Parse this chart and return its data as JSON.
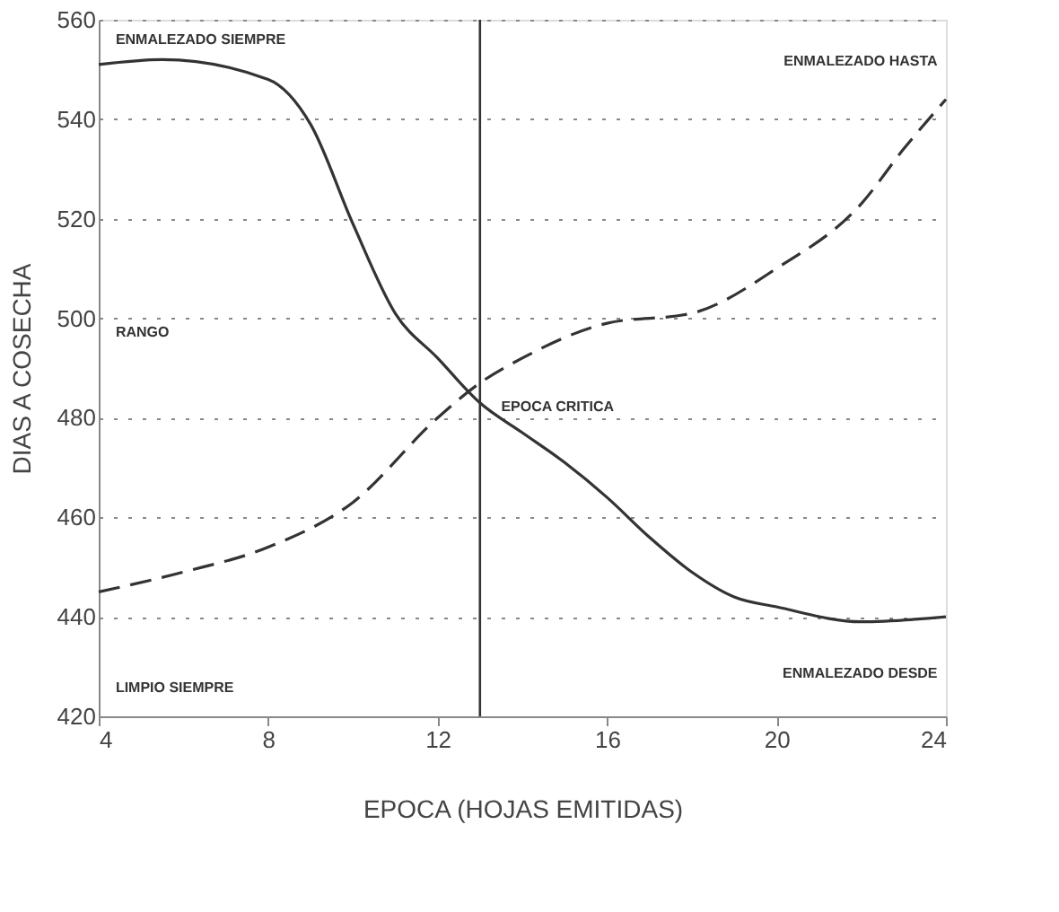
{
  "chart_data": {
    "type": "line",
    "xlabel": "EPOCA (HOJAS EMITIDAS)",
    "ylabel": "DIAS A COSECHA",
    "xlim": [
      4,
      24
    ],
    "xticks": [
      4,
      8,
      12,
      16,
      20,
      24
    ],
    "ylim": [
      420,
      560
    ],
    "yticks": [
      420,
      440,
      460,
      480,
      500,
      520,
      540,
      560
    ],
    "grid": "y",
    "series": [
      {
        "color": "#333333",
        "line_style": "solid",
        "x": [
          4,
          5.5,
          8,
          9,
          10,
          11,
          12,
          13,
          14,
          15,
          16,
          17,
          18,
          19,
          20,
          22,
          24
        ],
        "values": [
          551,
          552,
          548,
          539,
          519,
          501,
          492,
          483,
          477,
          471,
          464,
          456,
          449,
          444,
          442,
          439,
          440
        ]
      },
      {
        "color": "#333333",
        "line_style": "dashed",
        "x": [
          4,
          6,
          8,
          10,
          12,
          13,
          14,
          16,
          18,
          20,
          22,
          23,
          24
        ],
        "values": [
          445,
          449,
          454,
          463,
          480,
          487,
          492,
          499,
          501,
          510,
          523,
          534,
          544
        ]
      }
    ],
    "ref_lines": [
      {
        "axis": "x",
        "value": 13,
        "color": "#333333"
      }
    ],
    "annotations": [
      "ENMALEZADO SIEMPRE",
      "ENMALEZADO HASTA",
      "RANGO",
      {
        "text": "EPOCA CRITICA",
        "x": 13.5,
        "y": 482
      },
      "LIMPIO SIEMPRE",
      "ENMALEZADO DESDE"
    ]
  }
}
